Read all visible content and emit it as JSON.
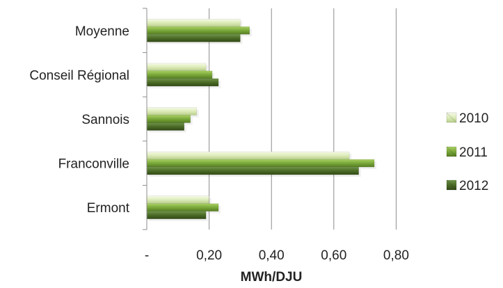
{
  "chart_data": {
    "type": "bar",
    "orientation": "horizontal",
    "categories": [
      "Moyenne",
      "Conseil Régional",
      "Sannois",
      "Franconville",
      "Ermont"
    ],
    "series": [
      {
        "name": "2010",
        "values": [
          0.3,
          0.19,
          0.16,
          0.65,
          0.2
        ],
        "color": "#dcebb8"
      },
      {
        "name": "2011",
        "values": [
          0.33,
          0.21,
          0.14,
          0.73,
          0.23
        ],
        "color": "#7aa83a"
      },
      {
        "name": "2012",
        "values": [
          0.3,
          0.23,
          0.12,
          0.68,
          0.19
        ],
        "color": "#4b6b26"
      }
    ],
    "xticks": [
      "-",
      "0,20",
      "0,40",
      "0,60",
      "0,80"
    ],
    "xlim": [
      0,
      0.8
    ],
    "xlabel": "MWh/DJU",
    "title": "",
    "grid": true,
    "legend_position": "right"
  }
}
